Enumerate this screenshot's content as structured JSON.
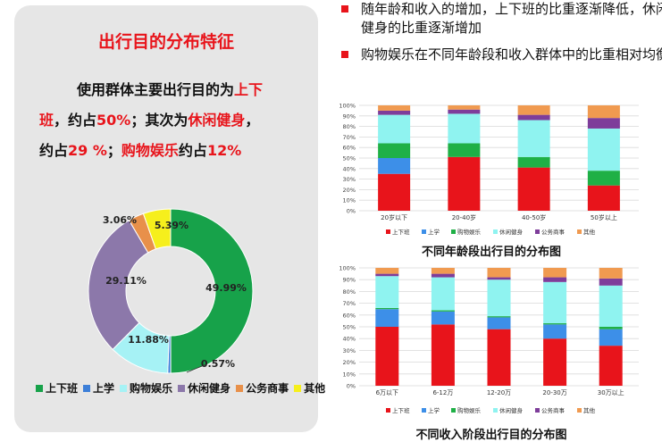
{
  "panel": {
    "title": "出行目的分布特征",
    "intro": {
      "t1": "使用群体主要出行目的为",
      "h1": "上下",
      "h1b": "班",
      "t2": "，约占",
      "h2": "50%",
      "t3": "；其次为",
      "h3": "休闲健身",
      "t4": "，",
      "t5": "约占",
      "h4": "29 %",
      "t6": "；",
      "h5": "购物娱乐",
      "t7": "约占",
      "h6": "12%"
    }
  },
  "bullets": [
    "随年龄和收入的增加，上下班的比重逐渐降低，休闲健身的比重逐渐增加",
    "购物娱乐在不同年龄段和收入群体中的比重相对均衡"
  ],
  "colors": {
    "commute": "#e8141b",
    "school": "#3d8fe8",
    "shopping": "#1fb046",
    "leisure": "#8ff3f0",
    "business": "#7e3d9a",
    "other": "#f09a50",
    "donut_commute": "#17a24a",
    "donut_school": "#3d7fd8",
    "donut_shopping": "#a6f2f5",
    "donut_leisure": "#8c78aa",
    "donut_business": "#e8904a",
    "donut_other": "#f6ef1c"
  },
  "chart_data": [
    {
      "type": "pie",
      "variant": "donut",
      "categories": [
        "上下班",
        "上学",
        "购物娱乐",
        "休闲健身",
        "公务商事",
        "其他"
      ],
      "values": [
        49.99,
        0.57,
        11.88,
        29.11,
        3.06,
        5.39
      ],
      "labels": [
        "49.99%",
        "0.57%",
        "11.88%",
        "29.11%",
        "3.06%",
        "5.39%"
      ],
      "legend_position": "bottom"
    },
    {
      "type": "bar",
      "stacked": true,
      "title": "不同年龄段出行目的分布图",
      "categories": [
        "20岁以下",
        "20-40岁",
        "40-50岁",
        "50岁以上"
      ],
      "ylim": [
        0,
        100
      ],
      "yticks": [
        "0%",
        "10%",
        "20%",
        "30%",
        "40%",
        "50%",
        "60%",
        "70%",
        "80%",
        "90%",
        "100%"
      ],
      "legend_position": "bottom",
      "series": [
        {
          "name": "上下班",
          "values": [
            35,
            51,
            41,
            24
          ]
        },
        {
          "name": "上学",
          "values": [
            15,
            0,
            0,
            0
          ]
        },
        {
          "name": "购物娱乐",
          "values": [
            14,
            13,
            10,
            14
          ]
        },
        {
          "name": "休闲健身",
          "values": [
            27,
            28,
            35,
            40
          ]
        },
        {
          "name": "公务商事",
          "values": [
            4,
            4,
            5,
            10
          ]
        },
        {
          "name": "其他",
          "values": [
            5,
            4,
            9,
            12
          ]
        }
      ]
    },
    {
      "type": "bar",
      "stacked": true,
      "title": "不同收入阶段出行目的分布图",
      "categories": [
        "6万以下",
        "6-12万",
        "12-20万",
        "20-30万",
        "30万以上"
      ],
      "ylim": [
        0,
        100
      ],
      "yticks": [
        "0%",
        "10%",
        "20%",
        "30%",
        "40%",
        "50%",
        "60%",
        "70%",
        "80%",
        "90%",
        "100%"
      ],
      "legend_position": "bottom",
      "series": [
        {
          "name": "上下班",
          "values": [
            50,
            52,
            48,
            40,
            34
          ]
        },
        {
          "name": "上学",
          "values": [
            15,
            11,
            10,
            12,
            14
          ]
        },
        {
          "name": "购物娱乐",
          "values": [
            1,
            1,
            1,
            1,
            2
          ]
        },
        {
          "name": "休闲健身",
          "values": [
            27,
            28,
            31,
            35,
            35
          ]
        },
        {
          "name": "公务商事",
          "values": [
            2,
            3,
            2,
            4,
            6
          ]
        },
        {
          "name": "其他",
          "values": [
            5,
            5,
            8,
            8,
            9
          ]
        }
      ]
    }
  ]
}
